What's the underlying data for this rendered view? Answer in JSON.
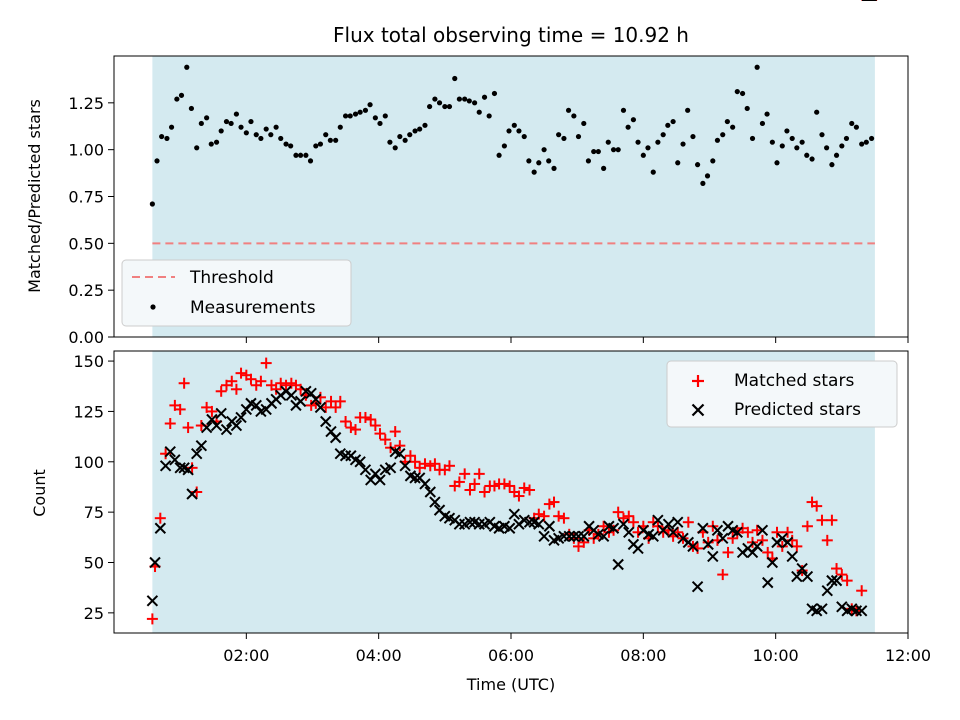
{
  "title": "Flux total observing time = 10.92 h",
  "chart_data": [
    {
      "type": "scatter",
      "ylabel": "Matched/Predicted stars",
      "ylim": [
        0,
        1.5
      ],
      "xlim_hours": [
        0.0,
        12.0
      ],
      "y_ticks": [
        "0.00",
        "0.25",
        "0.50",
        "0.75",
        "1.00",
        "1.25"
      ],
      "y_tick_values": [
        0,
        0.25,
        0.5,
        0.75,
        1.0,
        1.25
      ],
      "shaded_span_hours": [
        0.58,
        11.5
      ],
      "shade_color": "#d4eaf0",
      "threshold": {
        "label": "Threshold",
        "value": 0.5,
        "color": "#f08080"
      },
      "legend_position": "lower-left",
      "series": [
        {
          "name": "Measurements",
          "color": "#000000",
          "x": [
            0.58,
            0.65,
            0.72,
            0.8,
            0.87,
            0.95,
            1.02,
            1.1,
            1.17,
            1.25,
            1.32,
            1.4,
            1.47,
            1.55,
            1.62,
            1.7,
            1.77,
            1.85,
            1.92,
            2.0,
            2.07,
            2.15,
            2.22,
            2.3,
            2.37,
            2.45,
            2.52,
            2.6,
            2.67,
            2.75,
            2.82,
            2.9,
            2.97,
            3.05,
            3.12,
            3.2,
            3.27,
            3.35,
            3.42,
            3.5,
            3.57,
            3.65,
            3.72,
            3.8,
            3.87,
            3.95,
            4.02,
            4.1,
            4.17,
            4.25,
            4.32,
            4.4,
            4.47,
            4.55,
            4.62,
            4.7,
            4.77,
            4.85,
            4.92,
            5.0,
            5.07,
            5.15,
            5.22,
            5.3,
            5.37,
            5.45,
            5.52,
            5.6,
            5.67,
            5.75,
            5.82,
            5.9,
            5.97,
            6.05,
            6.12,
            6.2,
            6.27,
            6.35,
            6.42,
            6.5,
            6.57,
            6.65,
            6.72,
            6.8,
            6.87,
            6.95,
            7.02,
            7.1,
            7.17,
            7.25,
            7.32,
            7.4,
            7.47,
            7.55,
            7.62,
            7.7,
            7.77,
            7.85,
            7.92,
            8.0,
            8.07,
            8.15,
            8.22,
            8.3,
            8.37,
            8.45,
            8.52,
            8.6,
            8.67,
            8.75,
            8.82,
            8.9,
            8.97,
            9.05,
            9.12,
            9.2,
            9.27,
            9.35,
            9.42,
            9.5,
            9.57,
            9.65,
            9.72,
            9.8,
            9.87,
            9.95,
            10.02,
            10.1,
            10.17,
            10.25,
            10.32,
            10.4,
            10.47,
            10.55,
            10.62,
            10.7,
            10.77,
            10.85,
            10.92,
            11.0,
            11.07,
            11.15,
            11.22,
            11.3,
            11.37,
            11.45
          ],
          "y": [
            0.71,
            0.94,
            1.07,
            1.06,
            1.12,
            1.27,
            1.29,
            1.44,
            1.22,
            1.01,
            1.14,
            1.17,
            1.03,
            1.04,
            1.1,
            1.15,
            1.14,
            1.19,
            1.12,
            1.09,
            1.15,
            1.08,
            1.06,
            1.11,
            1.08,
            1.12,
            1.06,
            1.03,
            1.02,
            0.97,
            0.97,
            0.97,
            0.94,
            1.02,
            1.03,
            1.08,
            1.05,
            1.05,
            1.12,
            1.18,
            1.18,
            1.19,
            1.2,
            1.21,
            1.24,
            1.17,
            1.14,
            1.18,
            1.04,
            1.01,
            1.07,
            1.05,
            1.08,
            1.1,
            1.11,
            1.13,
            1.23,
            1.27,
            1.25,
            1.23,
            1.23,
            1.38,
            1.27,
            1.27,
            1.26,
            1.25,
            1.2,
            1.28,
            1.18,
            1.3,
            0.97,
            1.02,
            1.1,
            1.13,
            1.1,
            1.07,
            0.94,
            0.88,
            0.93,
            1.0,
            0.94,
            0.9,
            1.08,
            1.06,
            1.21,
            1.18,
            1.07,
            1.14,
            0.94,
            0.99,
            0.99,
            0.9,
            1.04,
            1.0,
            1.0,
            1.21,
            1.12,
            1.16,
            1.04,
            0.97,
            1.01,
            0.88,
            1.04,
            1.08,
            1.13,
            1.15,
            0.93,
            1.03,
            1.21,
            1.07,
            0.92,
            0.82,
            0.86,
            0.94,
            1.05,
            1.08,
            1.15,
            1.12,
            1.31,
            1.3,
            1.22,
            1.06,
            1.44,
            1.14,
            1.19,
            1.04,
            0.93,
            1.02,
            1.1,
            1.06,
            1.01,
            1.04,
            0.97,
            0.95,
            1.2,
            1.08,
            1.01,
            0.92,
            0.97,
            1.02,
            1.06,
            1.14,
            1.12,
            1.03,
            1.04,
            1.06
          ]
        }
      ]
    },
    {
      "type": "scatter",
      "xlabel": "Time (UTC)",
      "ylabel": "Count",
      "ylim": [
        15,
        155
      ],
      "xlim_hours": [
        0.0,
        12.0
      ],
      "x_tick_values_hours": [
        2,
        4,
        6,
        8,
        10,
        12
      ],
      "x_ticks": [
        "02:00",
        "04:00",
        "06:00",
        "08:00",
        "10:00",
        "12:00"
      ],
      "y_tick_values": [
        25,
        50,
        75,
        100,
        125,
        150
      ],
      "y_ticks": [
        "25",
        "50",
        "75",
        "100",
        "125",
        "150"
      ],
      "shaded_span_hours": [
        0.58,
        11.5
      ],
      "shade_color": "#d4eaf0",
      "legend_position": "upper-right",
      "x": [
        0.58,
        0.62,
        0.7,
        0.78,
        0.85,
        0.92,
        1.0,
        1.06,
        1.12,
        1.18,
        1.25,
        1.32,
        1.4,
        1.48,
        1.55,
        1.62,
        1.7,
        1.78,
        1.85,
        1.92,
        2.0,
        2.07,
        2.15,
        2.22,
        2.3,
        2.38,
        2.45,
        2.52,
        2.6,
        2.68,
        2.75,
        2.82,
        2.9,
        2.98,
        3.05,
        3.12,
        3.2,
        3.28,
        3.35,
        3.42,
        3.5,
        3.58,
        3.65,
        3.72,
        3.8,
        3.88,
        3.95,
        4.02,
        4.1,
        4.18,
        4.25,
        4.32,
        4.4,
        4.48,
        4.55,
        4.62,
        4.7,
        4.78,
        4.85,
        4.92,
        5.0,
        5.07,
        5.15,
        5.22,
        5.3,
        5.38,
        5.45,
        5.52,
        5.6,
        5.68,
        5.75,
        5.82,
        5.9,
        5.98,
        6.05,
        6.12,
        6.2,
        6.28,
        6.35,
        6.42,
        6.5,
        6.58,
        6.65,
        6.72,
        6.8,
        6.88,
        6.95,
        7.02,
        7.1,
        7.18,
        7.25,
        7.32,
        7.4,
        7.48,
        7.55,
        7.62,
        7.7,
        7.78,
        7.85,
        7.92,
        8.0,
        8.08,
        8.15,
        8.22,
        8.3,
        8.38,
        8.45,
        8.52,
        8.6,
        8.68,
        8.75,
        8.82,
        8.9,
        8.98,
        9.05,
        9.12,
        9.2,
        9.28,
        9.35,
        9.42,
        9.5,
        9.58,
        9.65,
        9.72,
        9.8,
        9.88,
        9.95,
        10.02,
        10.1,
        10.18,
        10.25,
        10.32,
        10.4,
        10.48,
        10.55,
        10.62,
        10.7,
        10.78,
        10.85,
        10.92,
        11.0,
        11.08,
        11.15,
        11.22,
        11.3,
        11.38,
        11.45
      ],
      "series": [
        {
          "name": "Matched stars",
          "color": "#ff0000",
          "marker": "plus",
          "values": [
            22,
            48,
            72,
            104,
            119,
            128,
            126,
            139,
            117,
            97,
            85,
            118,
            127,
            125,
            120,
            135,
            138,
            140,
            136,
            144,
            143,
            141,
            138,
            140,
            149,
            138,
            136,
            139,
            138,
            139,
            138,
            136,
            133,
            128,
            129,
            132,
            127,
            130,
            127,
            130,
            120,
            117,
            116,
            122,
            122,
            121,
            118,
            114,
            111,
            107,
            115,
            108,
            100,
            103,
            100,
            97,
            99,
            98,
            99,
            96,
            96,
            98,
            88,
            90,
            94,
            86,
            89,
            94,
            85,
            88,
            88,
            89,
            89,
            88,
            85,
            83,
            87,
            86,
            72,
            74,
            73,
            79,
            80,
            73,
            72,
            64,
            62,
            58,
            60,
            66,
            62,
            64,
            68,
            65,
            66,
            75,
            72,
            73,
            70,
            65,
            68,
            62,
            70,
            68,
            65,
            66,
            63,
            65,
            62,
            70,
            58,
            57,
            65,
            60,
            68,
            61,
            44,
            55,
            62,
            65,
            67,
            65,
            60,
            66,
            61,
            55,
            52,
            65,
            58,
            65,
            61,
            58,
            46,
            68,
            80,
            78,
            71,
            61,
            71,
            47,
            44,
            41,
            27,
            26,
            36
          ],
          "note": ""
        },
        {
          "name": "Predicted stars",
          "color": "#000000",
          "marker": "x",
          "values": [
            31,
            50,
            67,
            98,
            105,
            101,
            97,
            97,
            96,
            84,
            104,
            108,
            117,
            121,
            118,
            124,
            116,
            120,
            118,
            122,
            126,
            129,
            128,
            125,
            126,
            129,
            131,
            133,
            135,
            133,
            128,
            130,
            135,
            134,
            131,
            127,
            120,
            115,
            112,
            104,
            103,
            103,
            101,
            100,
            96,
            91,
            94,
            91,
            96,
            97,
            105,
            104,
            98,
            93,
            92,
            92,
            89,
            85,
            80,
            76,
            73,
            72,
            71,
            69,
            69,
            70,
            70,
            69,
            69,
            70,
            68,
            67,
            68,
            67,
            74,
            69,
            71,
            70,
            70,
            69,
            63,
            68,
            61,
            62,
            63,
            63,
            63,
            63,
            63,
            68,
            66,
            64,
            63,
            68,
            67,
            49,
            69,
            65,
            59,
            57,
            66,
            64,
            63,
            71,
            66,
            69,
            65,
            70,
            62,
            60,
            58,
            38,
            67,
            59,
            53,
            66,
            62,
            68,
            66,
            65,
            55,
            57,
            55,
            58,
            66,
            40,
            50,
            60,
            62,
            60,
            53,
            43,
            47,
            43,
            27,
            26,
            27,
            36,
            41,
            41,
            28,
            26,
            27,
            26,
            26
          ],
          "note": ""
        }
      ]
    }
  ]
}
